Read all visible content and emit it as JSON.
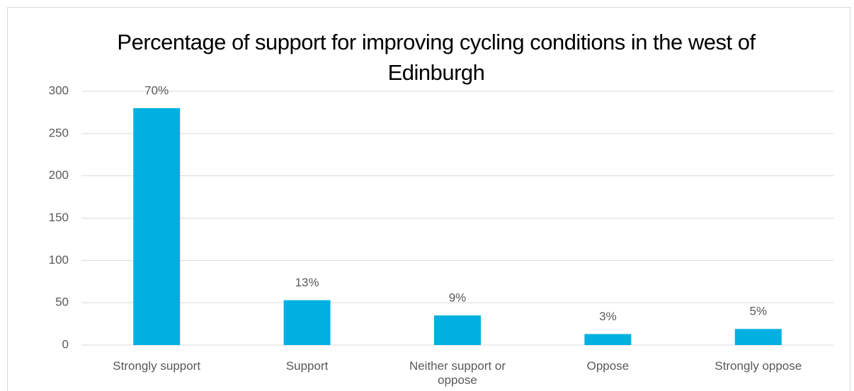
{
  "chart_data": {
    "type": "bar",
    "title": "Percentage of support for improving cycling conditions in the west of Edinburgh",
    "categories": [
      "Strongly support",
      "Support",
      "Neither support or oppose",
      "Oppose",
      "Strongly oppose"
    ],
    "values": [
      280,
      53,
      35,
      13,
      19
    ],
    "value_labels": [
      "70%",
      "13%",
      "9%",
      "3%",
      "5%"
    ],
    "color": "#00b0e0",
    "ylim": [
      0,
      300
    ],
    "yticks": [
      0,
      50,
      100,
      150,
      200,
      250,
      300
    ],
    "grid": true
  }
}
